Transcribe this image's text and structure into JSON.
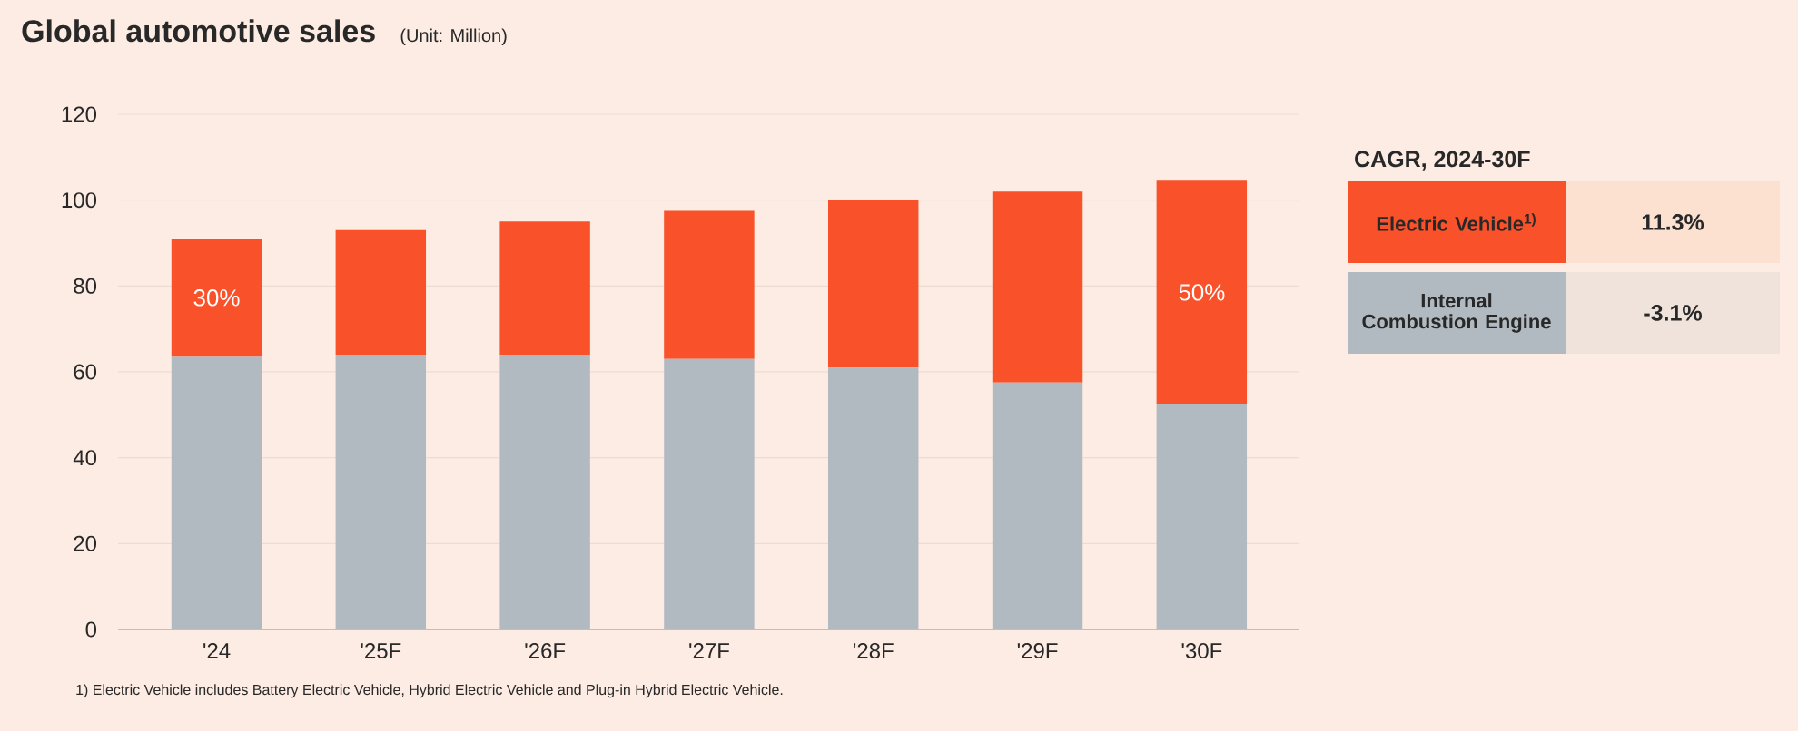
{
  "chart_data": {
    "type": "bar",
    "title": "Global automotive sales",
    "subtitle": "(Unit: Million)",
    "categories": [
      "'24",
      "'25F",
      "'26F",
      "'27F",
      "'28F",
      "'29F",
      "'30F"
    ],
    "stacked": true,
    "series": [
      {
        "name": "Internal Combustion Engine",
        "color": "#b2bac1",
        "values": [
          63.5,
          64,
          64,
          63,
          61,
          57.5,
          52.5
        ]
      },
      {
        "name": "Electric Vehicle$^{1)}$",
        "color": "#f9512a",
        "values": [
          27.5,
          29,
          31,
          34.5,
          39,
          44.5,
          52
        ]
      }
    ],
    "ylim": [
      0,
      120
    ],
    "yticks": [
      0,
      20,
      40,
      60,
      80,
      100,
      120
    ],
    "grid": "y",
    "legend": "right",
    "annotations": [
      "CAGR, 2024-30F",
      "11.3%",
      "-3.1%",
      "1) Electric Vehicle includes Battery Electric Vehicle, Hybrid Electric Vehicle and Plug-in Hybrid Electric Vehicle.",
      "30%",
      "50%"
    ]
  }
}
